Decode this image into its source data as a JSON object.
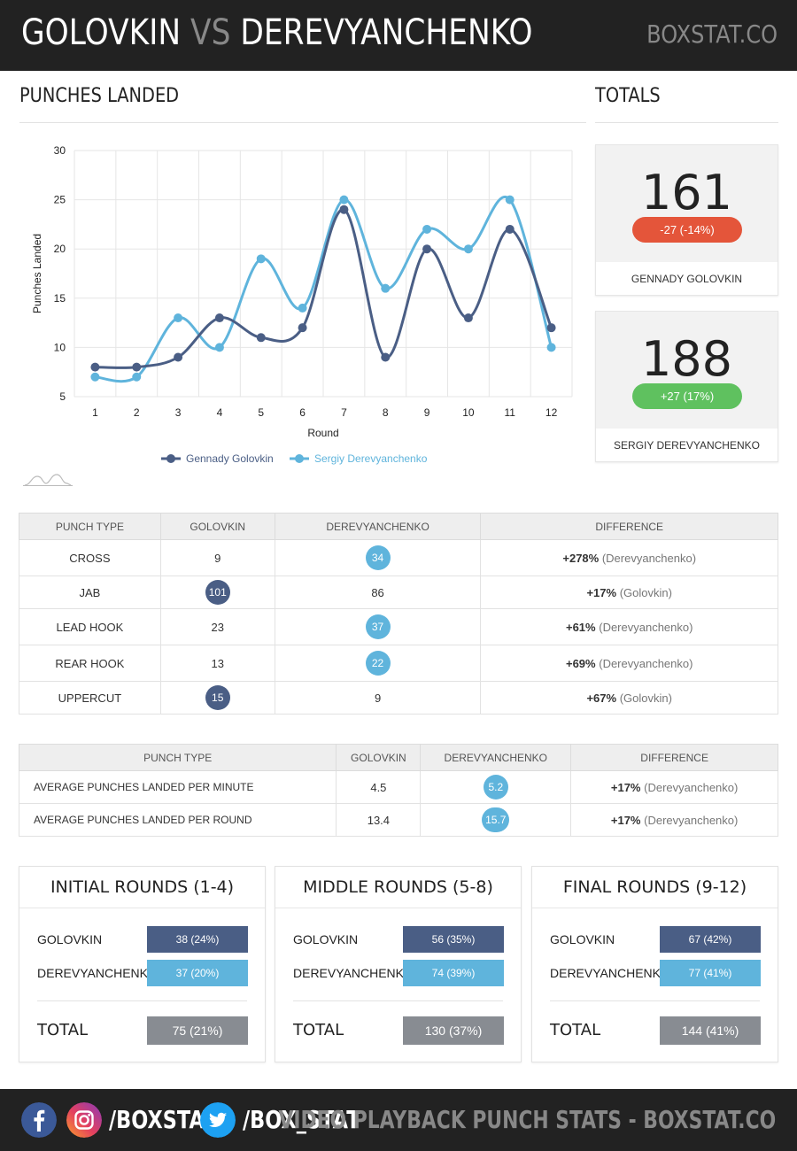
{
  "header": {
    "fighter_a": "GOLOVKIN",
    "vs": "VS",
    "fighter_b": "DEREVYANCHENKO",
    "brand": "BOXSTAT.CO"
  },
  "sections": {
    "punches_landed": "PUNCHES LANDED",
    "totals": "TOTALS"
  },
  "chart_data": {
    "type": "line",
    "x": [
      1,
      2,
      3,
      4,
      5,
      6,
      7,
      8,
      9,
      10,
      11,
      12
    ],
    "series": [
      {
        "name": "Gennady Golovkin",
        "color": "#4a5e85",
        "values": [
          8,
          8,
          9,
          13,
          11,
          12,
          24,
          9,
          20,
          13,
          22,
          12
        ]
      },
      {
        "name": "Sergiy Derevyanchenko",
        "color": "#5fb4dc",
        "values": [
          7,
          7,
          13,
          10,
          19,
          14,
          25,
          16,
          22,
          20,
          25,
          10
        ]
      }
    ],
    "xlabel": "Round",
    "ylabel": "Punches Landed",
    "ylim": [
      5,
      30
    ],
    "yticks": [
      5,
      10,
      15,
      20,
      25,
      30
    ],
    "grid": true,
    "legend": "bottom"
  },
  "totals": [
    {
      "value": "161",
      "diff": "-27 (-14%)",
      "name": "GENNADY GOLOVKIN",
      "pill_color": "#e4553a"
    },
    {
      "value": "188",
      "diff": "+27 (17%)",
      "name": "SERGIY DEREVYANCHENKO",
      "pill_color": "#5fc15f"
    }
  ],
  "punch_table": {
    "headers": [
      "PUNCH TYPE",
      "GOLOVKIN",
      "DEREVYANCHENKO",
      "DIFFERENCE"
    ],
    "rows": [
      {
        "type": "CROSS",
        "a": "9",
        "b": "34",
        "winner": "b",
        "diff": "+278%",
        "who": "(Derevyanchenko)"
      },
      {
        "type": "JAB",
        "a": "101",
        "b": "86",
        "winner": "a",
        "diff": "+17%",
        "who": "(Golovkin)"
      },
      {
        "type": "LEAD HOOK",
        "a": "23",
        "b": "37",
        "winner": "b",
        "diff": "+61%",
        "who": "(Derevyanchenko)"
      },
      {
        "type": "REAR HOOK",
        "a": "13",
        "b": "22",
        "winner": "b",
        "diff": "+69%",
        "who": "(Derevyanchenko)"
      },
      {
        "type": "UPPERCUT",
        "a": "15",
        "b": "9",
        "winner": "a",
        "diff": "+67%",
        "who": "(Golovkin)"
      }
    ]
  },
  "avg_table": {
    "headers": [
      "PUNCH TYPE",
      "GOLOVKIN",
      "DEREVYANCHENKO",
      "DIFFERENCE"
    ],
    "rows": [
      {
        "type": "AVERAGE PUNCHES LANDED PER MINUTE",
        "a": "4.5",
        "b": "5.2",
        "winner": "b",
        "diff": "+17%",
        "who": "(Derevyanchenko)"
      },
      {
        "type": "AVERAGE PUNCHES LANDED PER ROUND",
        "a": "13.4",
        "b": "15.7",
        "winner": "b",
        "diff": "+17%",
        "who": "(Derevyanchenko)"
      }
    ]
  },
  "rounds": [
    {
      "title": "INITIAL ROUNDS (1-4)",
      "a_label": "GOLOVKIN",
      "a": "38 (24%)",
      "b_label": "DEREVYANCHENKO",
      "b": "37 (20%)",
      "total_label": "TOTAL",
      "total": "75 (21%)"
    },
    {
      "title": "MIDDLE ROUNDS (5-8)",
      "a_label": "GOLOVKIN",
      "a": "56 (35%)",
      "b_label": "DEREVYANCHENKO",
      "b": "74 (39%)",
      "total_label": "TOTAL",
      "total": "130 (37%)"
    },
    {
      "title": "FINAL ROUNDS (9-12)",
      "a_label": "GOLOVKIN",
      "a": "67 (42%)",
      "b_label": "DEREVYANCHENKO",
      "b": "77 (41%)",
      "total_label": "TOTAL",
      "total": "144 (41%)"
    }
  ],
  "footer": {
    "instagram_handle": "/BOXSTAT",
    "twitter_handle": "/BOX_STAT",
    "tagline": "VIDEO PLAYBACK PUNCH STATS - BOXSTAT.CO"
  },
  "colors": {
    "golovkin": "#4a5e85",
    "derevyanchenko": "#5fb4dc",
    "total_bar": "#888c92",
    "negative": "#e4553a",
    "positive": "#5fc15f"
  }
}
